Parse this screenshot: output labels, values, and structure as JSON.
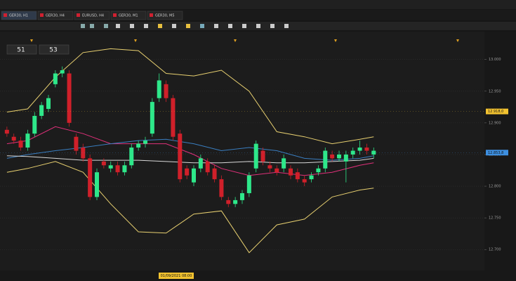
{
  "window": {
    "tabs": [
      "GER30, H1",
      "GER30, H4",
      "EURUSD, H4",
      "GER30, M1",
      "GER30, M5"
    ],
    "quote": [
      "51",
      "53"
    ]
  },
  "chart_data": {
    "type": "candlestick",
    "x": [
      1,
      2,
      3,
      4,
      5,
      6,
      7,
      8,
      9,
      10,
      11,
      12,
      13,
      14,
      15,
      16,
      17,
      18,
      19,
      20,
      21,
      22,
      23,
      24,
      25,
      26,
      27,
      28,
      29,
      30,
      31,
      32,
      33,
      34,
      35,
      36,
      37,
      38,
      39,
      40,
      41,
      42,
      43,
      44,
      45,
      46,
      47,
      48,
      49,
      50,
      51,
      52,
      53,
      54
    ],
    "open": [
      12889,
      12878,
      12872,
      12861,
      12883,
      12911,
      12922,
      12961,
      12978,
      12978,
      12878,
      12861,
      12844,
      12783,
      12839,
      12828,
      12833,
      12822,
      12833,
      12861,
      12867,
      12883,
      12939,
      12961,
      12939,
      12883,
      12828,
      12806,
      12828,
      12839,
      12828,
      12811,
      12778,
      12772,
      12778,
      12789,
      12828,
      12856,
      12833,
      12828,
      12828,
      12828,
      12822,
      12811,
      12811,
      12822,
      12828,
      12850,
      12844,
      12839,
      12850,
      12856,
      12861,
      12850
    ],
    "high": [
      12894,
      12883,
      12878,
      12889,
      12917,
      12933,
      12944,
      12983,
      12989,
      12983,
      12883,
      12867,
      12850,
      12828,
      12844,
      12839,
      12839,
      12839,
      12867,
      12872,
      12878,
      12939,
      12978,
      12967,
      12944,
      12889,
      12833,
      12833,
      12850,
      12844,
      12833,
      12817,
      12783,
      12783,
      12794,
      12822,
      12872,
      12861,
      12839,
      12833,
      12850,
      12833,
      12828,
      12817,
      12822,
      12833,
      12861,
      12856,
      12856,
      12856,
      12861,
      12872,
      12867,
      12861
    ],
    "low": [
      12878,
      12867,
      12856,
      12856,
      12878,
      12906,
      12917,
      12956,
      12972,
      12894,
      12850,
      12839,
      12778,
      12778,
      12828,
      12822,
      12817,
      12817,
      12828,
      12856,
      12861,
      12878,
      12933,
      12933,
      12872,
      12806,
      12811,
      12800,
      12822,
      12817,
      12806,
      12778,
      12767,
      12767,
      12772,
      12783,
      12822,
      12833,
      12822,
      12817,
      12822,
      12811,
      12806,
      12800,
      12806,
      12817,
      12822,
      12839,
      12839,
      12806,
      12844,
      12850,
      12850,
      12844
    ],
    "close": [
      12883,
      12872,
      12861,
      12883,
      12911,
      12928,
      12939,
      12978,
      12983,
      12900,
      12856,
      12844,
      12783,
      12822,
      12833,
      12833,
      12822,
      12833,
      12861,
      12867,
      12872,
      12933,
      12967,
      12939,
      12878,
      12811,
      12817,
      12828,
      12844,
      12822,
      12811,
      12783,
      12772,
      12778,
      12789,
      12817,
      12867,
      12839,
      12828,
      12822,
      12844,
      12817,
      12811,
      12806,
      12817,
      12828,
      12856,
      12844,
      12850,
      12850,
      12856,
      12861,
      12856,
      12856
    ],
    "up_color": "#2ee88a",
    "down_color": "#d0202a",
    "series": [
      {
        "color": "#e8d070",
        "x": [
          1,
          4,
          8,
          12,
          16,
          20,
          24,
          28,
          32,
          36,
          40,
          44,
          48,
          52,
          54
        ],
        "values": [
          12917,
          12922,
          12972,
          13011,
          13017,
          13014,
          12978,
          12974,
          12983,
          12950,
          12886,
          12878,
          12867,
          12874,
          12878
        ]
      },
      {
        "color": "#e8d070",
        "x": [
          1,
          4,
          8,
          12,
          16,
          20,
          24,
          28,
          32,
          36,
          40,
          44,
          48,
          52,
          54
        ],
        "values": [
          12822,
          12828,
          12839,
          12822,
          12772,
          12728,
          12726,
          12756,
          12761,
          12695,
          12739,
          12748,
          12783,
          12794,
          12797
        ]
      },
      {
        "color": "#e0307a",
        "x": [
          1,
          4,
          8,
          12,
          16,
          20,
          24,
          28,
          32,
          36,
          40,
          44,
          48,
          52,
          54
        ],
        "values": [
          12867,
          12872,
          12894,
          12883,
          12867,
          12867,
          12867,
          12850,
          12828,
          12817,
          12822,
          12817,
          12822,
          12833,
          12837
        ]
      },
      {
        "color": "#3a7ec0",
        "x": [
          1,
          4,
          8,
          12,
          16,
          20,
          24,
          28,
          32,
          36,
          40,
          44,
          48,
          52,
          54
        ],
        "values": [
          12844,
          12850,
          12856,
          12861,
          12867,
          12872,
          12874,
          12867,
          12856,
          12861,
          12856,
          12844,
          12841,
          12844,
          12848
        ]
      },
      {
        "color": "#d8d8d8",
        "x": [
          1,
          4,
          8,
          12,
          16,
          20,
          24,
          28,
          32,
          36,
          40,
          44,
          48,
          52,
          54
        ],
        "values": [
          12848,
          12847,
          12844,
          12841,
          12841,
          12841,
          12839,
          12837,
          12837,
          12839,
          12837,
          12837,
          12839,
          12841,
          12844
        ]
      }
    ],
    "xlim": [
      0,
      70
    ],
    "ylim": [
      12667,
      13044
    ],
    "yticks": [
      {
        "value": 13000,
        "label": "13.000"
      },
      {
        "value": 12950,
        "label": "12.950"
      },
      {
        "value": 12900,
        "label": "12.900"
      },
      {
        "value": 12850,
        "label": "12.850"
      },
      {
        "value": 12800,
        "label": "12.800"
      },
      {
        "value": 12750,
        "label": "12.750"
      },
      {
        "value": 12700,
        "label": "12.700"
      }
    ],
    "grid": true,
    "price_labels": [
      {
        "value": 12918,
        "label": "12.918,0",
        "color": "#f2c230"
      },
      {
        "value": 12853,
        "label": "12.853,8",
        "color": "#3d8fe0"
      }
    ],
    "time_label": "01/09/2021 08:00"
  }
}
